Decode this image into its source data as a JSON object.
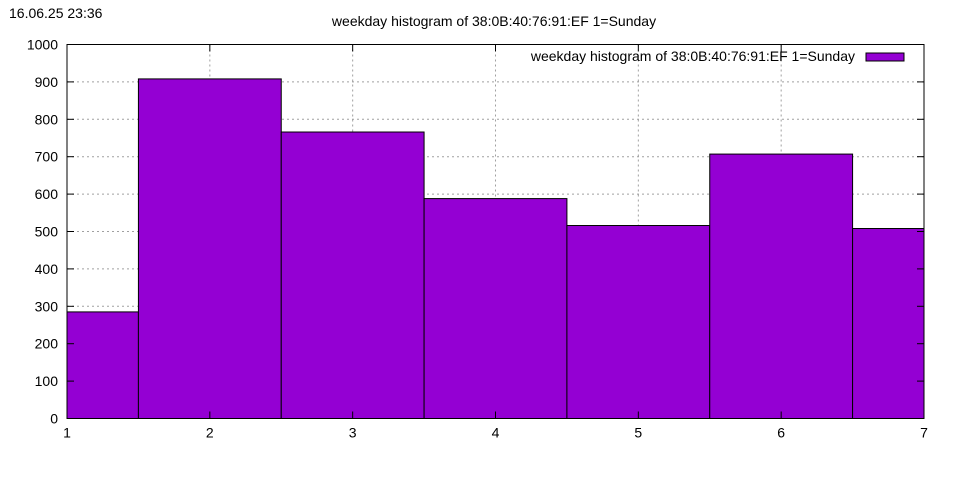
{
  "timestamp": "16.06.25 23:36",
  "chart_data": {
    "type": "bar",
    "title": "weekday histogram of 38:0B:40:76:91:EF 1=Sunday",
    "xlabel": "",
    "ylabel": "",
    "x": [
      1,
      2,
      3,
      4,
      5,
      6,
      7
    ],
    "xlim": [
      1,
      7
    ],
    "ylim": [
      0,
      1000
    ],
    "x_ticks": [
      "1",
      "2",
      "3",
      "4",
      "5",
      "6",
      "7"
    ],
    "y_ticks": [
      "0",
      "100",
      "200",
      "300",
      "400",
      "500",
      "600",
      "700",
      "800",
      "900",
      "1000"
    ],
    "grid": true,
    "legend": {
      "position": "top-right"
    },
    "series": [
      {
        "name": "weekday histogram of 38:0B:40:76:91:EF 1=Sunday",
        "color": "#9400D3",
        "values": [
          285,
          908,
          766,
          588,
          516,
          707,
          508
        ]
      }
    ]
  }
}
